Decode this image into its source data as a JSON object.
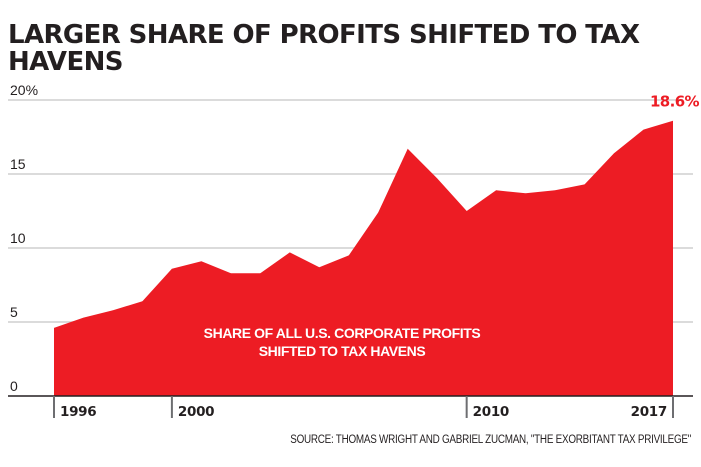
{
  "chart_data": {
    "type": "area",
    "title": "LARGER SHARE OF PROFITS SHIFTED TO TAX HAVENS",
    "xlabel": "",
    "ylabel": "",
    "series": [
      {
        "name": "Share of all U.S. corporate profits shifted to tax havens",
        "x": [
          1996,
          1997,
          1998,
          1999,
          2000,
          2001,
          2002,
          2003,
          2004,
          2005,
          2006,
          2007,
          2008,
          2009,
          2010,
          2011,
          2012,
          2013,
          2014,
          2015,
          2016,
          2017
        ],
        "values": [
          4.6,
          5.3,
          5.8,
          6.4,
          8.6,
          9.1,
          8.3,
          8.3,
          9.7,
          8.7,
          9.5,
          12.4,
          16.7,
          14.7,
          12.5,
          13.9,
          13.7,
          13.9,
          14.3,
          16.4,
          18.0,
          18.6
        ],
        "color": "#ed1c24"
      }
    ],
    "ylim": [
      0,
      20
    ],
    "xlim": [
      1996,
      2017
    ],
    "y_ticks": [
      {
        "value": 0,
        "label": "0"
      },
      {
        "value": 5,
        "label": "5"
      },
      {
        "value": 10,
        "label": "10"
      },
      {
        "value": 15,
        "label": "15"
      },
      {
        "value": 20,
        "label": "20%"
      }
    ],
    "x_ticks": [
      {
        "value": 1996,
        "label": "1996"
      },
      {
        "value": 2000,
        "label": "2000"
      },
      {
        "value": 2010,
        "label": "2010"
      },
      {
        "value": 2017,
        "label": "2017"
      }
    ],
    "grid": true,
    "annotations": [
      {
        "text": "18.6%",
        "x": 2017,
        "y": 18.6,
        "color": "#ed1c24"
      },
      {
        "text_lines": [
          "SHARE OF ALL U.S. CORPORATE PROFITS",
          "SHIFTED TO TAX HAVENS"
        ],
        "color": "#ffffff"
      }
    ],
    "source": "SOURCE: THOMAS WRIGHT AND GABRIEL ZUCMAN, \"THE EXORBITANT TAX PRIVILEGE\""
  }
}
